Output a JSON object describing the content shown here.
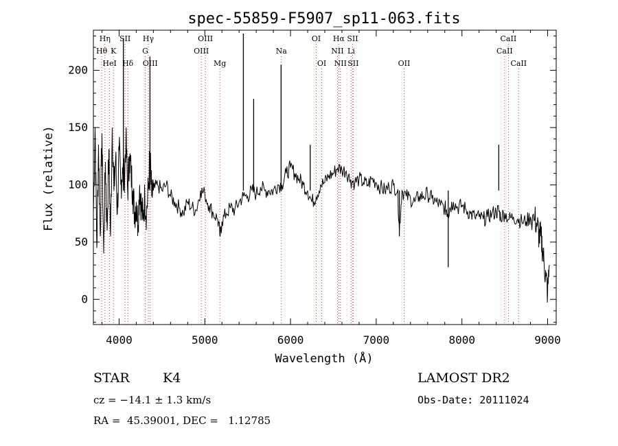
{
  "chart_data": {
    "type": "line",
    "title": "spec-55859-F5907_sp11-063.fits",
    "xlabel": "Wavelength (Å)",
    "ylabel": "Flux (relative)",
    "xlim": [
      3700,
      9100
    ],
    "ylim": [
      -22,
      235
    ],
    "xticks": [
      4000,
      5000,
      6000,
      7000,
      8000,
      9000
    ],
    "yticks": [
      0,
      50,
      100,
      150,
      200
    ],
    "grid": false,
    "series": [
      {
        "x": [
          3700,
          3720,
          3740,
          3760,
          3780,
          3800,
          3820,
          3840,
          3860,
          3880,
          3900,
          3920,
          3940,
          3960,
          3980,
          4000,
          4020,
          4040,
          4060,
          4080,
          4100,
          4120,
          4140,
          4160,
          4180,
          4200,
          4220,
          4240,
          4260,
          4280,
          4300,
          4320,
          4340,
          4360,
          4380,
          4400,
          4450,
          4500,
          4550,
          4600,
          4650,
          4700,
          4750,
          4800,
          4850,
          4900,
          4950,
          5000,
          5050,
          5100,
          5150,
          5180,
          5200,
          5250,
          5300,
          5350,
          5400,
          5450,
          5500,
          5550,
          5600,
          5650,
          5700,
          5750,
          5800,
          5850,
          5900,
          5950,
          6000,
          6050,
          6100,
          6150,
          6200,
          6250,
          6300,
          6350,
          6400,
          6450,
          6500,
          6550,
          6600,
          6650,
          6700,
          6750,
          6800,
          6850,
          6900,
          6950,
          7000,
          7050,
          7100,
          7150,
          7200,
          7250,
          7270,
          7300,
          7350,
          7400,
          7450,
          7500,
          7550,
          7600,
          7650,
          7700,
          7750,
          7800,
          7820,
          7840,
          7860,
          7900,
          7950,
          8000,
          8050,
          8100,
          8150,
          8200,
          8250,
          8300,
          8350,
          8400,
          8430,
          8450,
          8500,
          8550,
          8600,
          8650,
          8700,
          8750,
          8800,
          8850,
          8880,
          8900,
          8920,
          8940,
          8960,
          8980,
          9000,
          9020
        ],
        "y": [
          75,
          150,
          45,
          135,
          55,
          145,
          40,
          120,
          60,
          130,
          55,
          150,
          95,
          125,
          75,
          130,
          100,
          115,
          105,
          140,
          95,
          125,
          110,
          95,
          75,
          85,
          65,
          100,
          80,
          70,
          90,
          75,
          95,
          125,
          90,
          95,
          100,
          95,
          100,
          90,
          85,
          80,
          75,
          85,
          80,
          78,
          95,
          92,
          82,
          75,
          70,
          55,
          68,
          75,
          80,
          78,
          85,
          90,
          90,
          95,
          92,
          98,
          95,
          95,
          95,
          100,
          100,
          110,
          115,
          110,
          105,
          100,
          95,
          85,
          90,
          100,
          102,
          108,
          110,
          115,
          113,
          112,
          104,
          102,
          105,
          102,
          100,
          105,
          102,
          98,
          95,
          98,
          100,
          95,
          60,
          95,
          90,
          88,
          85,
          90,
          90,
          92,
          88,
          85,
          82,
          80,
          78,
          75,
          80,
          85,
          80,
          82,
          78,
          75,
          72,
          72,
          70,
          72,
          75,
          76,
          78,
          72,
          75,
          70,
          72,
          70,
          68,
          68,
          72,
          70,
          65,
          55,
          55,
          45,
          30,
          20,
          5,
          30
        ],
        "spikes": [
          [
            4050,
            228
          ],
          [
            4360,
            212
          ],
          [
            5450,
            232
          ],
          [
            5570,
            175
          ],
          [
            5890,
            205
          ],
          [
            6230,
            135
          ],
          [
            8430,
            135
          ],
          [
            7270,
            55
          ],
          [
            7840,
            28
          ]
        ]
      }
    ],
    "lines": [
      {
        "name": "Hη",
        "x": 3835,
        "row": 1
      },
      {
        "name": "Hθ",
        "x": 3797,
        "row": 2
      },
      {
        "name": "K",
        "x": 3934,
        "row": 2
      },
      {
        "name": "HeI",
        "x": 3889,
        "row": 3
      },
      {
        "name": "SII",
        "x": 4069,
        "row": 1
      },
      {
        "name": "Hδ",
        "x": 4102,
        "row": 3
      },
      {
        "name": "Hγ",
        "x": 4341,
        "row": 1
      },
      {
        "name": "G",
        "x": 4305,
        "row": 2
      },
      {
        "name": "OIII",
        "x": 4363,
        "row": 3
      },
      {
        "name": "OIII",
        "x": 5007,
        "row": 1
      },
      {
        "name": "OIII",
        "x": 4959,
        "row": 2
      },
      {
        "name": "Mg",
        "x": 5175,
        "row": 3
      },
      {
        "name": "Na",
        "x": 5893,
        "row": 2
      },
      {
        "name": "OI",
        "x": 6300,
        "row": 1
      },
      {
        "name": "OI",
        "x": 6364,
        "row": 3
      },
      {
        "name": "Hα",
        "x": 6563,
        "row": 1
      },
      {
        "name": "SII",
        "x": 6724,
        "row": 1
      },
      {
        "name": "NII",
        "x": 6548,
        "row": 2
      },
      {
        "name": "Li",
        "x": 6708,
        "row": 2
      },
      {
        "name": "NII",
        "x": 6583,
        "row": 3
      },
      {
        "name": "SII",
        "x": 6731,
        "row": 3
      },
      {
        "name": "OII",
        "x": 7325,
        "row": 3
      },
      {
        "name": "CaII",
        "x": 8542,
        "row": 1
      },
      {
        "name": "CaII",
        "x": 8498,
        "row": 2
      },
      {
        "name": "CaII",
        "x": 8662,
        "row": 3
      }
    ]
  },
  "info": {
    "class_label": "STAR",
    "subclass": "K4",
    "survey": "LAMOST DR2",
    "cz": "cz = −14.1 ± 1.3 km/s",
    "obs_date": "Obs-Date: 20111024",
    "coords": "RA =  45.39001, DEC =   1.12785"
  }
}
